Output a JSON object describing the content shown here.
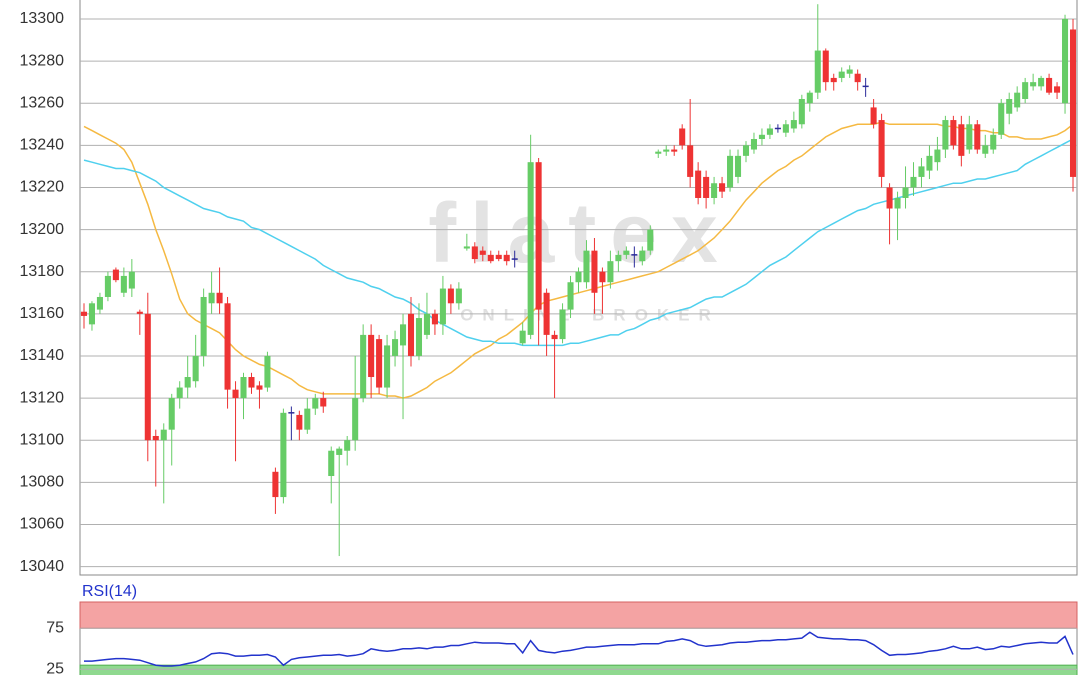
{
  "watermark": {
    "brand": "flatex",
    "tagline": "ONLINE BROKER"
  },
  "chart_data": [
    {
      "type": "candlestick",
      "up_color": "#66cc66",
      "down_color": "#ee3333",
      "doji_color": "#2b2b9a",
      "open": [
        13161,
        13155,
        13162,
        13168,
        13181,
        13170,
        13172,
        13161,
        13160,
        13102,
        13100,
        13105,
        13120,
        13125,
        13128,
        13140,
        13165,
        13170,
        13165,
        13124,
        13120,
        13130,
        13126,
        13125,
        13085,
        13073,
        13113,
        13112,
        13105,
        13115,
        13120,
        13083,
        13093,
        13095,
        13100,
        13120,
        13150,
        13148,
        13125,
        13140,
        13145,
        13160,
        13140,
        13150,
        13160,
        13155,
        13172,
        13165,
        13191,
        13192,
        13190,
        13188,
        13188,
        13188,
        13186,
        13146,
        13150,
        13232,
        13170,
        13150,
        13148,
        13162,
        13175,
        13175,
        13190,
        13180,
        13175,
        13185,
        13188,
        13188,
        13185,
        13190,
        13236,
        13237,
        13238,
        13248,
        13240,
        13228,
        13225,
        13215,
        13222,
        13220,
        13225,
        13235,
        13238,
        13243,
        13245,
        13248,
        13246,
        13248,
        13250,
        13260,
        13265,
        13285,
        13272,
        13272,
        13274,
        13274,
        13268,
        13258,
        13252,
        13220,
        13210,
        13215,
        13220,
        13225,
        13228,
        13232,
        13238,
        13252,
        13250,
        13238,
        13250,
        13236,
        13238,
        13245,
        13255,
        13258,
        13262,
        13268,
        13268,
        13272,
        13268,
        13260,
        13295
      ],
      "high": [
        13165,
        13166,
        13170,
        13180,
        13182,
        13182,
        13186,
        13162,
        13170,
        13105,
        13108,
        13122,
        13128,
        13140,
        13150,
        13172,
        13180,
        13182,
        13168,
        13128,
        13132,
        13132,
        13128,
        13142,
        13087,
        13115,
        13116,
        13114,
        13120,
        13122,
        13123,
        13097,
        13097,
        13102,
        13140,
        13155,
        13155,
        13150,
        13150,
        13152,
        13160,
        13168,
        13165,
        13170,
        13162,
        13178,
        13174,
        13175,
        13198,
        13194,
        13192,
        13190,
        13190,
        13190,
        13190,
        13156,
        13245,
        13234,
        13172,
        13152,
        13165,
        13178,
        13182,
        13195,
        13196,
        13182,
        13190,
        13190,
        13192,
        13192,
        13192,
        13202,
        13238,
        13240,
        13240,
        13250,
        13262,
        13232,
        13228,
        13225,
        13225,
        13238,
        13238,
        13242,
        13246,
        13248,
        13250,
        13250,
        13252,
        13256,
        13264,
        13266,
        13307,
        13286,
        13274,
        13277,
        13278,
        13276,
        13272,
        13262,
        13255,
        13222,
        13218,
        13230,
        13232,
        13234,
        13240,
        13244,
        13254,
        13254,
        13254,
        13254,
        13252,
        13245,
        13248,
        13262,
        13265,
        13268,
        13272,
        13274,
        13273,
        13274,
        13270,
        13302,
        13300
      ],
      "low": [
        13153,
        13152,
        13160,
        13166,
        13175,
        13168,
        13168,
        13150,
        13090,
        13078,
        13070,
        13088,
        13115,
        13120,
        13125,
        13135,
        13160,
        13160,
        13115,
        13090,
        13110,
        13122,
        13115,
        13123,
        13065,
        13070,
        13100,
        13100,
        13103,
        13112,
        13113,
        13070,
        13045,
        13088,
        13095,
        13118,
        13120,
        13122,
        13120,
        13135,
        13110,
        13135,
        13138,
        13148,
        13150,
        13150,
        13160,
        13162,
        13190,
        13184,
        13185,
        13184,
        13185,
        13183,
        13182,
        13145,
        13148,
        13145,
        13140,
        13120,
        13146,
        13158,
        13170,
        13172,
        13160,
        13160,
        13172,
        13180,
        13186,
        13182,
        13183,
        13188,
        13234,
        13235,
        13235,
        13238,
        13220,
        13212,
        13210,
        13212,
        13215,
        13218,
        13222,
        13232,
        13236,
        13240,
        13243,
        13246,
        13244,
        13246,
        13248,
        13256,
        13262,
        13266,
        13266,
        13270,
        13272,
        13266,
        13263,
        13248,
        13220,
        13193,
        13195,
        13210,
        13216,
        13220,
        13224,
        13228,
        13234,
        13238,
        13230,
        13236,
        13236,
        13234,
        13236,
        13243,
        13250,
        13256,
        13260,
        13266,
        13266,
        13264,
        13262,
        13255,
        13218
      ],
      "close": [
        13159,
        13165,
        13168,
        13178,
        13176,
        13178,
        13180,
        13160,
        13100,
        13100,
        13105,
        13120,
        13125,
        13130,
        13140,
        13168,
        13170,
        13165,
        13124,
        13120,
        13130,
        13125,
        13124,
        13140,
        13073,
        13113,
        13113,
        13105,
        13115,
        13120,
        13116,
        13095,
        13096,
        13100,
        13120,
        13150,
        13130,
        13125,
        13145,
        13148,
        13155,
        13140,
        13158,
        13160,
        13155,
        13172,
        13165,
        13172,
        13192,
        13186,
        13188,
        13185,
        13186,
        13185,
        13186,
        13152,
        13232,
        13162,
        13150,
        13148,
        13162,
        13175,
        13180,
        13190,
        13170,
        13175,
        13185,
        13188,
        13190,
        13188,
        13190,
        13200,
        13237,
        13238,
        13237,
        13240,
        13225,
        13215,
        13215,
        13222,
        13218,
        13235,
        13235,
        13240,
        13243,
        13245,
        13248,
        13248,
        13250,
        13252,
        13262,
        13265,
        13285,
        13270,
        13270,
        13275,
        13276,
        13270,
        13268,
        13250,
        13225,
        13210,
        13215,
        13220,
        13225,
        13230,
        13235,
        13238,
        13252,
        13240,
        13235,
        13250,
        13238,
        13240,
        13245,
        13260,
        13262,
        13265,
        13270,
        13270,
        13272,
        13265,
        13265,
        13300,
        13225
      ],
      "overlays": [
        {
          "color": "#f5b942",
          "values": [
            13249,
            13247,
            13245,
            13243,
            13241,
            13238,
            13232,
            13222,
            13212,
            13200,
            13190,
            13179,
            13167,
            13160,
            13157,
            13155,
            13153,
            13151,
            13147,
            13143,
            13140,
            13138,
            13136,
            13135,
            13133,
            13131,
            13129,
            13126,
            13124,
            13123,
            13122,
            13122,
            13122,
            13122,
            13122,
            13122,
            13122,
            13122,
            13121,
            13121,
            13120,
            13121,
            13123,
            13125,
            13128,
            13130,
            13132,
            13135,
            13138,
            13141,
            13143,
            13145,
            13148,
            13150,
            13153,
            13156,
            13160,
            13164,
            13166,
            13167,
            13168,
            13169,
            13170,
            13171,
            13172,
            13173,
            13174,
            13175,
            13176,
            13177,
            13178,
            13179,
            13180,
            13182,
            13184,
            13186,
            13188,
            13190,
            13193,
            13196,
            13200,
            13204,
            13209,
            13214,
            13218,
            13222,
            13225,
            13228,
            13230,
            13233,
            13235,
            13238,
            13241,
            13244,
            13246,
            13248,
            13249,
            13250,
            13250,
            13250,
            13251,
            13250,
            13250,
            13250,
            13250,
            13250,
            13250,
            13250,
            13249,
            13249,
            13248,
            13248,
            13247,
            13247,
            13246,
            13246,
            13244,
            13244,
            13243,
            13243,
            13243,
            13244,
            13245,
            13247,
            13250
          ]
        },
        {
          "color": "#4fd0ee",
          "values": [
            13233,
            13232,
            13231,
            13230,
            13229,
            13229,
            13228,
            13227,
            13225,
            13223,
            13220,
            13218,
            13216,
            13214,
            13212,
            13210,
            13209,
            13208,
            13206,
            13205,
            13204,
            13201,
            13200,
            13198,
            13196,
            13194,
            13192,
            13190,
            13188,
            13186,
            13183,
            13181,
            13179,
            13177,
            13176,
            13175,
            13173,
            13172,
            13170,
            13168,
            13167,
            13165,
            13162,
            13160,
            13157,
            13155,
            13153,
            13151,
            13149,
            13148,
            13147,
            13147,
            13146,
            13146,
            13146,
            13145,
            13145,
            13145,
            13145,
            13145,
            13145,
            13146,
            13146,
            13147,
            13148,
            13149,
            13150,
            13150,
            13152,
            13153,
            13155,
            13157,
            13158,
            13160,
            13161,
            13162,
            13163,
            13165,
            13167,
            13168,
            13168,
            13170,
            13172,
            13174,
            13177,
            13180,
            13183,
            13185,
            13187,
            13190,
            13193,
            13196,
            13199,
            13201,
            13203,
            13205,
            13207,
            13209,
            13210,
            13212,
            13213,
            13214,
            13215,
            13216,
            13217,
            13218,
            13219,
            13220,
            13221,
            13222,
            13222,
            13223,
            13224,
            13224,
            13225,
            13226,
            13227,
            13228,
            13231,
            13233,
            13235,
            13237,
            13239,
            13241,
            13243
          ]
        }
      ],
      "ylim": [
        13036,
        13309
      ],
      "yticks": [
        13040,
        13060,
        13080,
        13100,
        13120,
        13140,
        13160,
        13180,
        13200,
        13220,
        13240,
        13260,
        13280,
        13300
      ],
      "grid": true
    },
    {
      "type": "line",
      "title": "RSI(14)",
      "color": "#2233cc",
      "upper_zone": 75,
      "lower_zone": 30,
      "upper_color": "#f4a3a3",
      "lower_color": "#8fd98f",
      "values": [
        35,
        35,
        36,
        37,
        38,
        38,
        37,
        36,
        33,
        30,
        29,
        29,
        30,
        32,
        34,
        38,
        44,
        45,
        44,
        41,
        41,
        42,
        42,
        43,
        40,
        30,
        37,
        39,
        40,
        41,
        42,
        42,
        43,
        41,
        42,
        44,
        50,
        48,
        47,
        48,
        50,
        50,
        51,
        50,
        52,
        52,
        54,
        54,
        56,
        58,
        57,
        57,
        57,
        56,
        56,
        45,
        60,
        48,
        46,
        45,
        47,
        48,
        50,
        52,
        52,
        53,
        54,
        55,
        55,
        55,
        56,
        56,
        56,
        59,
        60,
        62,
        60,
        55,
        53,
        54,
        55,
        57,
        58,
        58,
        59,
        60,
        60,
        61,
        61,
        62,
        63,
        70,
        64,
        63,
        62,
        62,
        61,
        61,
        60,
        55,
        48,
        42,
        43,
        43,
        44,
        45,
        47,
        48,
        50,
        53,
        50,
        50,
        52,
        49,
        50,
        53,
        52,
        54,
        56,
        57,
        58,
        57,
        57,
        65,
        43
      ],
      "ylim": [
        18,
        107
      ],
      "yticks": [
        25,
        75
      ],
      "grid": true
    }
  ]
}
